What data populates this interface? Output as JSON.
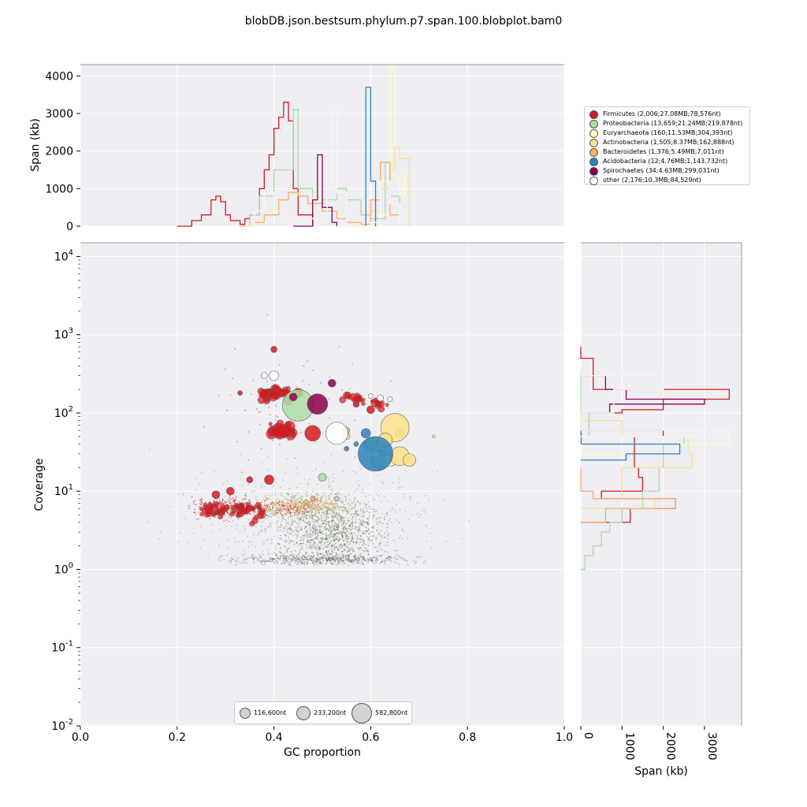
{
  "figure": {
    "title": "blobDB.json.bestsum.phylum.p7.span.100.blobplot.bam0",
    "xlabel": "GC proportion",
    "ylabel": "Coverage",
    "top_ylabel": "Span (kb)",
    "right_xlabel": "Span (kb)"
  },
  "chart_data": {
    "type": "scatter",
    "x_axis": {
      "label": "GC proportion",
      "range": [
        0.0,
        1.0
      ],
      "ticks": [
        "0.0",
        "0.2",
        "0.4",
        "0.6",
        "0.8",
        "1.0"
      ]
    },
    "y_axis": {
      "label": "Coverage",
      "scale": "log",
      "range": [
        0.01,
        15000
      ],
      "ticks": [
        "10^-2",
        "10^-1",
        "10^0",
        "10^1",
        "10^2",
        "10^3",
        "10^4"
      ]
    },
    "top_hist": {
      "ylabel": "Span (kb)",
      "range": [
        0,
        4300
      ],
      "ticks": [
        "0",
        "1000",
        "2000",
        "3000",
        "4000"
      ]
    },
    "right_hist": {
      "xlabel": "Span (kb)",
      "range": [
        0,
        3900
      ],
      "ticks": [
        "0",
        "1000",
        "2000",
        "3000"
      ]
    },
    "grid": true,
    "legend_position": "top-right, outside plot",
    "series": [
      {
        "name": "Firmicutes",
        "label": "Firmicutes (2,006;27.08MB;78,576nt)",
        "color": "#d7191c",
        "blobs": [
          {
            "gc": 0.45,
            "cov": 180,
            "r": 6
          },
          {
            "gc": 0.48,
            "cov": 55,
            "r": 10
          },
          {
            "gc": 0.41,
            "cov": 60,
            "r": 9
          },
          {
            "gc": 0.38,
            "cov": 175,
            "r": 6
          },
          {
            "gc": 0.39,
            "cov": 14,
            "r": 6
          },
          {
            "gc": 0.31,
            "cov": 10,
            "r": 5
          },
          {
            "gc": 0.57,
            "cov": 130,
            "r": 4
          },
          {
            "gc": 0.6,
            "cov": 110,
            "r": 5
          },
          {
            "gc": 0.4,
            "cov": 650,
            "r": 4
          },
          {
            "gc": 0.33,
            "cov": 180,
            "r": 3
          },
          {
            "gc": 0.35,
            "cov": 14,
            "r": 4
          },
          {
            "gc": 0.28,
            "cov": 9,
            "r": 5
          }
        ],
        "top_hist_kb": [
          [
            0.2,
            0
          ],
          [
            0.23,
            150
          ],
          [
            0.25,
            300
          ],
          [
            0.27,
            700
          ],
          [
            0.28,
            800
          ],
          [
            0.29,
            650
          ],
          [
            0.3,
            300
          ],
          [
            0.31,
            150
          ],
          [
            0.33,
            50
          ],
          [
            0.34,
            200
          ],
          [
            0.35,
            300
          ],
          [
            0.37,
            1000
          ],
          [
            0.38,
            1500
          ],
          [
            0.39,
            1900
          ],
          [
            0.4,
            2600
          ],
          [
            0.41,
            2900
          ],
          [
            0.42,
            3300
          ],
          [
            0.43,
            2800
          ],
          [
            0.44,
            1000
          ],
          [
            0.45,
            300
          ],
          [
            0.48,
            0
          ]
        ],
        "right_hist_kb": [
          [
            700,
            0
          ],
          [
            500,
            300
          ],
          [
            200,
            3600
          ],
          [
            150,
            2000
          ],
          [
            110,
            1000
          ],
          [
            100,
            0
          ],
          [
            60,
            2000
          ],
          [
            50,
            1300
          ],
          [
            20,
            1400
          ],
          [
            15,
            1500
          ],
          [
            10,
            500
          ],
          [
            8,
            2300
          ],
          [
            6,
            1200
          ],
          [
            4,
            0
          ]
        ]
      },
      {
        "name": "Proteobacteria",
        "label": "Proteobacteria (13,659;21.24MB;219,878nt)",
        "color": "#abdda4",
        "blobs": [
          {
            "gc": 0.45,
            "cov": 125,
            "r": 20
          },
          {
            "gc": 0.62,
            "cov": 25,
            "r": 12
          },
          {
            "gc": 0.6,
            "cov": 40,
            "r": 8
          },
          {
            "gc": 0.5,
            "cov": 15,
            "r": 5
          },
          {
            "gc": 0.66,
            "cov": 55,
            "r": 6
          },
          {
            "gc": 0.53,
            "cov": 8,
            "r": 3
          }
        ],
        "top_hist_kb": [
          [
            0.33,
            0
          ],
          [
            0.35,
            300
          ],
          [
            0.37,
            800
          ],
          [
            0.4,
            1500
          ],
          [
            0.44,
            3100
          ],
          [
            0.45,
            1000
          ],
          [
            0.48,
            600
          ],
          [
            0.5,
            700
          ],
          [
            0.53,
            1000
          ],
          [
            0.55,
            700
          ],
          [
            0.58,
            300
          ],
          [
            0.6,
            200
          ],
          [
            0.63,
            1700
          ],
          [
            0.64,
            800
          ],
          [
            0.66,
            0
          ]
        ],
        "right_hist_kb": [
          [
            300,
            0
          ],
          [
            100,
            200
          ],
          [
            50,
            2500
          ],
          [
            40,
            2000
          ],
          [
            20,
            1900
          ],
          [
            10,
            1500
          ],
          [
            6,
            1000
          ],
          [
            4,
            700
          ],
          [
            3,
            500
          ],
          [
            2,
            300
          ],
          [
            1.5,
            100
          ],
          [
            1,
            0
          ]
        ]
      },
      {
        "name": "Euryarchaeota",
        "label": "Euryarchaeota (160;11.53MB;304,393nt)",
        "color": "#ffffbf",
        "blobs": [
          {
            "gc": 0.64,
            "cov": 25,
            "r": 8
          },
          {
            "gc": 0.61,
            "cov": 30,
            "r": 6
          }
        ],
        "top_hist_kb": [
          [
            0.6,
            0
          ],
          [
            0.62,
            300
          ],
          [
            0.64,
            4200
          ],
          [
            0.65,
            1300
          ],
          [
            0.66,
            800
          ],
          [
            0.67,
            1400
          ],
          [
            0.68,
            0
          ]
        ],
        "right_hist_kb": [
          [
            60,
            0
          ],
          [
            50,
            3600
          ],
          [
            40,
            1200
          ],
          [
            30,
            0
          ]
        ]
      },
      {
        "name": "Actinobacteria",
        "label": "Actinobacteria (1,505;8.37MB;162,888nt)",
        "color": "#fee08b",
        "blobs": [
          {
            "gc": 0.65,
            "cov": 65,
            "r": 18
          },
          {
            "gc": 0.66,
            "cov": 28,
            "r": 12
          },
          {
            "gc": 0.63,
            "cov": 45,
            "r": 9
          },
          {
            "gc": 0.68,
            "cov": 25,
            "r": 8
          },
          {
            "gc": 0.55,
            "cov": 50,
            "r": 4
          },
          {
            "gc": 0.73,
            "cov": 50,
            "r": 2
          }
        ],
        "top_hist_kb": [
          [
            0.55,
            0
          ],
          [
            0.6,
            400
          ],
          [
            0.62,
            1000
          ],
          [
            0.64,
            1500
          ],
          [
            0.65,
            2100
          ],
          [
            0.66,
            1800
          ],
          [
            0.68,
            0
          ]
        ],
        "right_hist_kb": [
          [
            120,
            0
          ],
          [
            80,
            1000
          ],
          [
            50,
            2600
          ],
          [
            30,
            2700
          ],
          [
            20,
            1000
          ],
          [
            8,
            1800
          ],
          [
            6,
            0
          ]
        ]
      },
      {
        "name": "Bacteroidetes",
        "label": "Bacteroidetes (1,376;5.49MB;7,011nt)",
        "color": "#fdae61",
        "blobs": [
          {
            "gc": 0.55,
            "cov": 60,
            "r": 4
          },
          {
            "gc": 0.48,
            "cov": 8,
            "r": 3
          }
        ],
        "top_hist_kb": [
          [
            0.33,
            0
          ],
          [
            0.36,
            100
          ],
          [
            0.38,
            300
          ],
          [
            0.41,
            700
          ],
          [
            0.43,
            900
          ],
          [
            0.45,
            800
          ],
          [
            0.47,
            600
          ],
          [
            0.5,
            400
          ],
          [
            0.53,
            200
          ],
          [
            0.55,
            100
          ],
          [
            0.58,
            50
          ],
          [
            0.6,
            700
          ],
          [
            0.62,
            1700
          ],
          [
            0.64,
            300
          ],
          [
            0.66,
            0
          ]
        ],
        "right_hist_kb": [
          [
            20,
            0
          ],
          [
            10,
            300
          ],
          [
            8,
            2300
          ],
          [
            6,
            600
          ],
          [
            4,
            0
          ]
        ]
      },
      {
        "name": "Acidobacteria",
        "label": "Acidobacteria (12;4.76MB;1,143,732nt)",
        "color": "#2b83ba",
        "blobs": [
          {
            "gc": 0.61,
            "cov": 30,
            "r": 22
          },
          {
            "gc": 0.59,
            "cov": 55,
            "r": 6
          },
          {
            "gc": 0.57,
            "cov": 40,
            "r": 3
          },
          {
            "gc": 0.55,
            "cov": 35,
            "r": 3
          }
        ],
        "top_hist_kb": [
          [
            0.58,
            0
          ],
          [
            0.59,
            3700
          ],
          [
            0.6,
            1200
          ],
          [
            0.61,
            0
          ]
        ],
        "right_hist_kb": [
          [
            70,
            0
          ],
          [
            55,
            10
          ],
          [
            40,
            2400
          ],
          [
            30,
            1100
          ],
          [
            25,
            0
          ]
        ]
      },
      {
        "name": "Spirochaetes",
        "label": "Spirochaetes (34;4.63MB;299,031nt)",
        "color": "#8b004b",
        "blobs": [
          {
            "gc": 0.49,
            "cov": 130,
            "r": 13
          },
          {
            "gc": 0.52,
            "cov": 240,
            "r": 5
          },
          {
            "gc": 0.44,
            "cov": 160,
            "r": 5
          }
        ],
        "top_hist_kb": [
          [
            0.44,
            0
          ],
          [
            0.48,
            700
          ],
          [
            0.49,
            1900
          ],
          [
            0.5,
            500
          ],
          [
            0.52,
            100
          ],
          [
            0.53,
            0
          ]
        ],
        "right_hist_kb": [
          [
            350,
            0
          ],
          [
            300,
            600
          ],
          [
            200,
            1100
          ],
          [
            150,
            3000
          ],
          [
            130,
            700
          ],
          [
            100,
            0
          ]
        ]
      },
      {
        "name": "other",
        "label": "other (2,176;10.3MB;84,529nt)",
        "color": "#ffffff",
        "blobs": [
          {
            "gc": 0.53,
            "cov": 55,
            "r": 14
          },
          {
            "gc": 0.4,
            "cov": 300,
            "r": 6
          },
          {
            "gc": 0.38,
            "cov": 300,
            "r": 4
          },
          {
            "gc": 0.62,
            "cov": 155,
            "r": 4
          },
          {
            "gc": 0.64,
            "cov": 150,
            "r": 3
          },
          {
            "gc": 0.6,
            "cov": 165,
            "r": 3
          }
        ],
        "top_hist_kb": [
          [
            0.34,
            0
          ],
          [
            0.36,
            400
          ],
          [
            0.38,
            900
          ],
          [
            0.4,
            400
          ],
          [
            0.42,
            200
          ],
          [
            0.51,
            1000
          ],
          [
            0.52,
            3100
          ],
          [
            0.53,
            900
          ],
          [
            0.55,
            0
          ],
          [
            0.6,
            100
          ],
          [
            0.62,
            1200
          ],
          [
            0.64,
            600
          ],
          [
            0.66,
            0
          ]
        ],
        "right_hist_kb": [
          [
            400,
            0
          ],
          [
            300,
            2000
          ],
          [
            200,
            800
          ],
          [
            100,
            0
          ],
          [
            60,
            3600
          ],
          [
            50,
            0
          ]
        ]
      }
    ],
    "size_legend": [
      {
        "label": "116,600nt",
        "nt": 116600
      },
      {
        "label": "233,200nt",
        "nt": 233200
      },
      {
        "label": "582,800nt",
        "nt": 582800
      }
    ]
  }
}
